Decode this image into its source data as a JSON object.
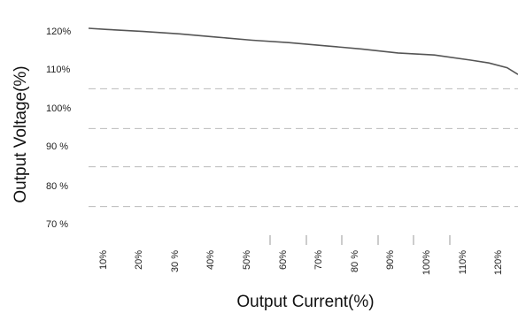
{
  "chart_data": {
    "type": "line",
    "title": "",
    "xlabel": "Output Current(%)",
    "ylabel": "Output Voltage(%)",
    "x_tick_labels": [
      "10%",
      "20%",
      "30 %",
      "40%",
      "50%",
      "60%",
      "70%",
      "80 %",
      "90%",
      "100%",
      "110%",
      "120%"
    ],
    "y_tick_labels": [
      "120%",
      "110%",
      "100%",
      "90 %",
      "80 %",
      "70 %"
    ],
    "x": [
      5,
      10,
      20,
      30,
      40,
      50,
      60,
      70,
      80,
      90,
      100,
      110,
      115,
      120,
      123
    ],
    "y": [
      120,
      119.7,
      119.2,
      118.6,
      117.8,
      117.0,
      116.4,
      115.6,
      114.8,
      113.8,
      113.3,
      112.0,
      111.3,
      110.1,
      108.4
    ],
    "xlim": [
      5,
      123
    ],
    "ylim": [
      68,
      120
    ],
    "grid": "dashed horizontal",
    "colors": {
      "line": "#555555",
      "grid": "#bbbbbb",
      "text": "#222222"
    }
  }
}
